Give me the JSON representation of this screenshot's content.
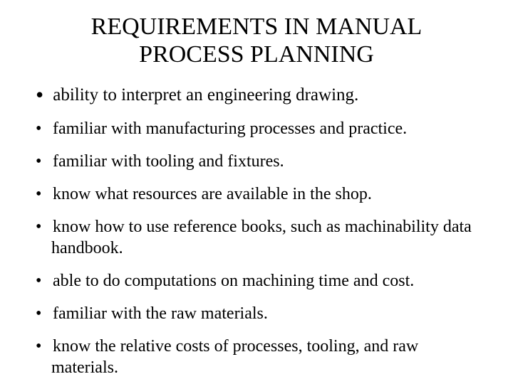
{
  "title": "REQUIREMENTS IN MANUAL PROCESS PLANNING",
  "bullets": [
    "ability to interpret an engineering drawing.",
    "familiar with manufacturing processes and practice.",
    "familiar with tooling and fixtures.",
    "know what resources are available in the shop.",
    "know how to use reference books, such as machinability data handbook.",
    "able to do computations on  machining time and cost.",
    "familiar with the raw materials.",
    "know the relative costs of processes, tooling, and raw materials."
  ],
  "style": {
    "background_color": "#ffffff",
    "text_color": "#000000",
    "font_family": "Times New Roman",
    "title_fontsize": 34,
    "body_fontsize": 24,
    "first_bullet_fontsize": 25,
    "first_bullet_marker_fontsize": 32,
    "bullet_marker": "•"
  }
}
